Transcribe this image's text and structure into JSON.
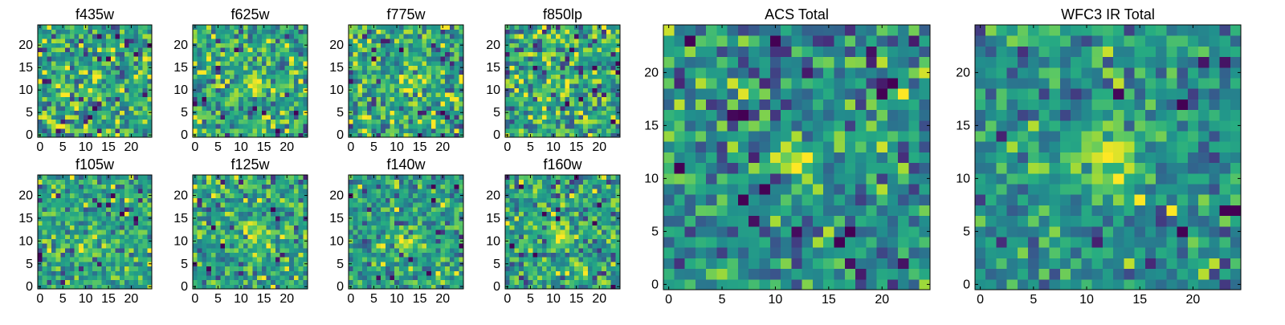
{
  "chart_data": [
    {
      "type": "heatmap",
      "title": "f435w",
      "xlim": [
        0,
        24
      ],
      "ylim": [
        0,
        24
      ],
      "xticks": [
        0,
        5,
        10,
        15,
        20
      ],
      "yticks": [
        0,
        5,
        10,
        15,
        20
      ],
      "grid": false,
      "colormap": "viridis",
      "peak": {
        "x": 12,
        "y": 12,
        "sigma": 1.3,
        "amplitude": 0.18
      },
      "background_level": 0.6,
      "noise_level": 0.22,
      "seed": 435
    },
    {
      "type": "heatmap",
      "title": "f625w",
      "xlim": [
        0,
        24
      ],
      "ylim": [
        0,
        24
      ],
      "xticks": [
        0,
        5,
        10,
        15,
        20
      ],
      "yticks": [
        0,
        5,
        10,
        15,
        20
      ],
      "grid": false,
      "colormap": "viridis",
      "peak": {
        "x": 13,
        "y": 11,
        "sigma": 1.6,
        "amplitude": 0.35
      },
      "background_level": 0.6,
      "noise_level": 0.2,
      "seed": 625
    },
    {
      "type": "heatmap",
      "title": "f775w",
      "xlim": [
        0,
        24
      ],
      "ylim": [
        0,
        24
      ],
      "xticks": [
        0,
        5,
        10,
        15,
        20
      ],
      "yticks": [
        0,
        5,
        10,
        15,
        20
      ],
      "grid": false,
      "colormap": "viridis",
      "peak": {
        "x": 12,
        "y": 12,
        "sigma": 1.6,
        "amplitude": 0.32
      },
      "background_level": 0.62,
      "noise_level": 0.2,
      "seed": 775
    },
    {
      "type": "heatmap",
      "title": "f850lp",
      "xlim": [
        0,
        24
      ],
      "ylim": [
        0,
        24
      ],
      "xticks": [
        0,
        5,
        10,
        15,
        20
      ],
      "yticks": [
        0,
        5,
        10,
        15,
        20
      ],
      "grid": false,
      "colormap": "viridis",
      "peak": {
        "x": 12,
        "y": 11,
        "sigma": 1.6,
        "amplitude": 0.22
      },
      "background_level": 0.6,
      "noise_level": 0.22,
      "seed": 850
    },
    {
      "type": "heatmap",
      "title": "ACS Total",
      "xlim": [
        0,
        24
      ],
      "ylim": [
        0,
        24
      ],
      "xticks": [
        0,
        5,
        10,
        15,
        20
      ],
      "yticks": [
        0,
        5,
        10,
        15,
        20
      ],
      "grid": false,
      "colormap": "viridis",
      "peak": {
        "x": 12,
        "y": 12,
        "sigma": 1.5,
        "amplitude": 0.5
      },
      "background_level": 0.5,
      "noise_level": 0.18,
      "seed": 1000
    },
    {
      "type": "heatmap",
      "title": "f105w",
      "xlim": [
        0,
        24
      ],
      "ylim": [
        0,
        24
      ],
      "xticks": [
        0,
        5,
        10,
        15,
        20
      ],
      "yticks": [
        0,
        5,
        10,
        15,
        20
      ],
      "grid": false,
      "colormap": "viridis",
      "peak": {
        "x": 10,
        "y": 10,
        "sigma": 2.2,
        "amplitude": 0.18
      },
      "background_level": 0.6,
      "noise_level": 0.16,
      "seed": 105
    },
    {
      "type": "heatmap",
      "title": "f125w",
      "xlim": [
        0,
        24
      ],
      "ylim": [
        0,
        24
      ],
      "xticks": [
        0,
        5,
        10,
        15,
        20
      ],
      "yticks": [
        0,
        5,
        10,
        15,
        20
      ],
      "grid": false,
      "colormap": "viridis",
      "peak": {
        "x": 12,
        "y": 12,
        "sigma": 1.8,
        "amplitude": 0.3
      },
      "background_level": 0.6,
      "noise_level": 0.18,
      "seed": 125
    },
    {
      "type": "heatmap",
      "title": "f140w",
      "xlim": [
        0,
        24
      ],
      "ylim": [
        0,
        24
      ],
      "xticks": [
        0,
        5,
        10,
        15,
        20
      ],
      "yticks": [
        0,
        5,
        10,
        15,
        20
      ],
      "grid": false,
      "colormap": "viridis",
      "peak": {
        "x": 12,
        "y": 10,
        "sigma": 1.8,
        "amplitude": 0.3
      },
      "background_level": 0.58,
      "noise_level": 0.16,
      "seed": 140
    },
    {
      "type": "heatmap",
      "title": "f160w",
      "xlim": [
        0,
        24
      ],
      "ylim": [
        0,
        24
      ],
      "xticks": [
        0,
        5,
        10,
        15,
        20
      ],
      "yticks": [
        0,
        5,
        10,
        15,
        20
      ],
      "grid": false,
      "colormap": "viridis",
      "peak": {
        "x": 12,
        "y": 11,
        "sigma": 1.8,
        "amplitude": 0.35
      },
      "background_level": 0.58,
      "noise_level": 0.18,
      "seed": 160
    },
    {
      "type": "heatmap",
      "title": "WFC3 IR Total",
      "xlim": [
        0,
        24
      ],
      "ylim": [
        0,
        24
      ],
      "xticks": [
        0,
        5,
        10,
        15,
        20
      ],
      "yticks": [
        0,
        5,
        10,
        15,
        20
      ],
      "grid": false,
      "colormap": "viridis",
      "peak": {
        "x": 12,
        "y": 12,
        "sigma": 2.2,
        "amplitude": 0.5
      },
      "background_level": 0.5,
      "noise_level": 0.16,
      "seed": 2000
    }
  ]
}
